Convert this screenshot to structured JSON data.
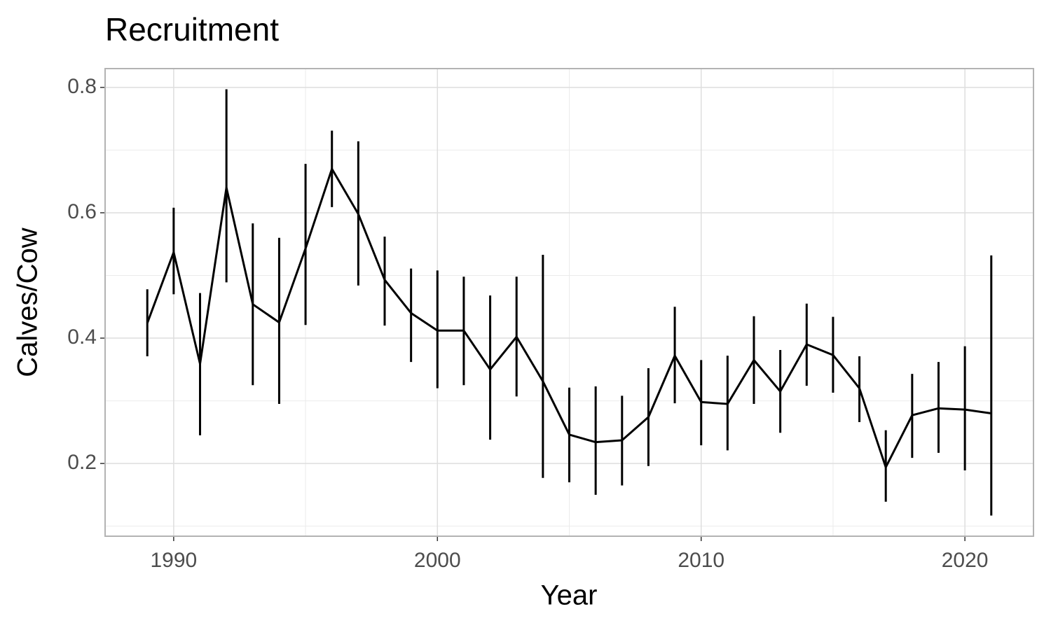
{
  "chart_data": {
    "type": "errorbar-line",
    "title": "Recruitment",
    "x_label": "Year",
    "y_label": "Calves/Cow",
    "x": [
      1989,
      1990,
      1991,
      1992,
      1993,
      1994,
      1995,
      1996,
      1997,
      1998,
      1999,
      2000,
      2001,
      2002,
      2003,
      2004,
      2005,
      2006,
      2007,
      2008,
      2009,
      2010,
      2011,
      2012,
      2013,
      2014,
      2015,
      2016,
      2017,
      2018,
      2019,
      2020,
      2021
    ],
    "values": [
      0.424,
      0.537,
      0.359,
      0.64,
      0.454,
      0.425,
      0.543,
      0.67,
      0.598,
      0.493,
      0.44,
      0.412,
      0.412,
      0.35,
      0.402,
      0.331,
      0.246,
      0.234,
      0.237,
      0.274,
      0.372,
      0.298,
      0.295,
      0.365,
      0.315,
      0.39,
      0.373,
      0.32,
      0.194,
      0.277,
      0.288,
      0.286,
      0.28
    ],
    "lower": [
      0.371,
      0.47,
      0.245,
      0.489,
      0.325,
      0.295,
      0.421,
      0.609,
      0.484,
      0.42,
      0.362,
      0.32,
      0.325,
      0.238,
      0.307,
      0.177,
      0.17,
      0.15,
      0.165,
      0.196,
      0.296,
      0.229,
      0.221,
      0.295,
      0.249,
      0.324,
      0.313,
      0.266,
      0.139,
      0.209,
      0.217,
      0.189,
      0.117
    ],
    "upper": [
      0.478,
      0.608,
      0.472,
      0.797,
      0.583,
      0.56,
      0.678,
      0.731,
      0.714,
      0.562,
      0.511,
      0.508,
      0.498,
      0.468,
      0.498,
      0.533,
      0.321,
      0.323,
      0.308,
      0.352,
      0.45,
      0.365,
      0.372,
      0.435,
      0.381,
      0.455,
      0.434,
      0.371,
      0.253,
      0.343,
      0.362,
      0.387,
      0.532
    ],
    "color": "#000000",
    "xlim": [
      1987.4,
      2022.6
    ],
    "xticks": [
      1990,
      2000,
      2010,
      2020
    ],
    "x_minor_ticks": [
      1995,
      2005,
      2015
    ],
    "ylim": [
      0.084,
      0.83
    ],
    "yticks": [
      0.2,
      0.4,
      0.6,
      0.8
    ],
    "y_minor_ticks": [
      0.1,
      0.3,
      0.5,
      0.7
    ],
    "grid": true
  }
}
